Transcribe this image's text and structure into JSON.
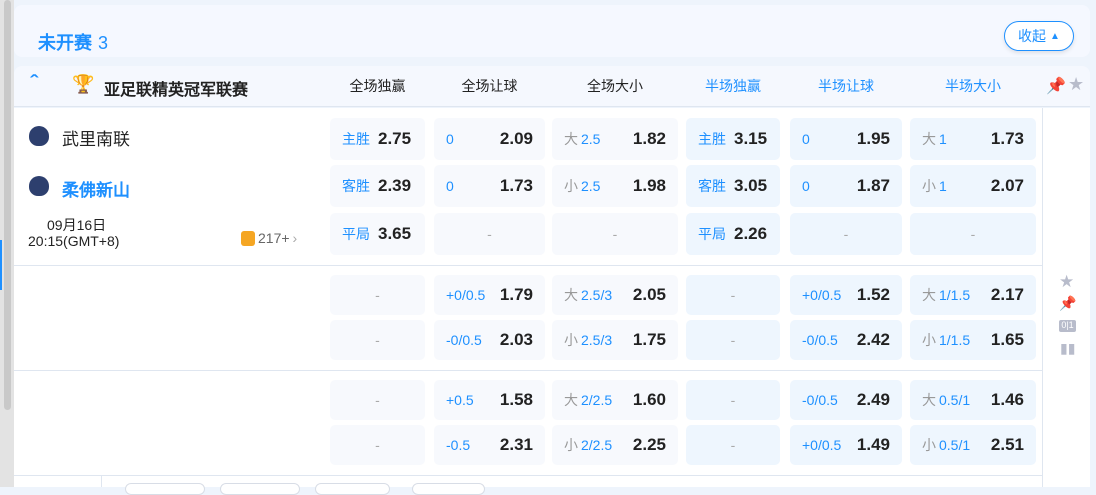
{
  "section": {
    "title": "未开赛",
    "count": "3",
    "collapse_label": "收起"
  },
  "league": {
    "name": "亚足联精英冠军联赛",
    "columns": [
      "全场独赢",
      "全场让球",
      "全场大小",
      "半场独赢",
      "半场让球",
      "半场大小"
    ]
  },
  "match": {
    "home": "武里南联",
    "away": "柔佛新山",
    "date": "09月16日",
    "time": "20:15(GMT+8)",
    "more_count": "217+"
  },
  "colors": {
    "accent": "#1e90ff",
    "halftime_bg": "#eef6fe",
    "fulltime_bg": "#f7f9fd"
  },
  "rows": [
    [
      {
        "l": "主胜",
        "o": "2.75"
      },
      {
        "l": "0",
        "o": "2.09"
      },
      {
        "p": "大",
        "l": "2.5",
        "o": "1.82"
      },
      {
        "l": "主胜",
        "o": "3.15"
      },
      {
        "l": "0",
        "o": "1.95"
      },
      {
        "p": "大",
        "l": "1",
        "o": "1.73"
      }
    ],
    [
      {
        "l": "客胜",
        "o": "2.39"
      },
      {
        "l": "0",
        "o": "1.73"
      },
      {
        "p": "小",
        "l": "2.5",
        "o": "1.98"
      },
      {
        "l": "客胜",
        "o": "3.05"
      },
      {
        "l": "0",
        "o": "1.87"
      },
      {
        "p": "小",
        "l": "1",
        "o": "2.07"
      }
    ],
    [
      {
        "l": "平局",
        "o": "3.65"
      },
      {
        "d": "-"
      },
      {
        "d": "-"
      },
      {
        "l": "平局",
        "o": "2.26"
      },
      {
        "d": "-"
      },
      {
        "d": "-"
      }
    ],
    [
      {
        "d": "-"
      },
      {
        "l": "+0/0.5",
        "o": "1.79"
      },
      {
        "p": "大",
        "l": "2.5/3",
        "o": "2.05"
      },
      {
        "d": "-"
      },
      {
        "l": "+0/0.5",
        "o": "1.52"
      },
      {
        "p": "大",
        "l": "1/1.5",
        "o": "2.17"
      }
    ],
    [
      {
        "d": "-"
      },
      {
        "l": "-0/0.5",
        "o": "2.03"
      },
      {
        "p": "小",
        "l": "2.5/3",
        "o": "1.75"
      },
      {
        "d": "-"
      },
      {
        "l": "-0/0.5",
        "o": "2.42"
      },
      {
        "p": "小",
        "l": "1/1.5",
        "o": "1.65"
      }
    ],
    [
      {
        "d": "-"
      },
      {
        "l": "+0.5",
        "o": "1.58"
      },
      {
        "p": "大",
        "l": "2/2.5",
        "o": "1.60"
      },
      {
        "d": "-"
      },
      {
        "l": "-0/0.5",
        "o": "2.49"
      },
      {
        "p": "大",
        "l": "0.5/1",
        "o": "1.46"
      }
    ],
    [
      {
        "d": "-"
      },
      {
        "l": "-0.5",
        "o": "2.31"
      },
      {
        "p": "小",
        "l": "2/2.5",
        "o": "2.25"
      },
      {
        "d": "-"
      },
      {
        "l": "+0/0.5",
        "o": "1.49"
      },
      {
        "p": "小",
        "l": "0.5/1",
        "o": "2.51"
      }
    ]
  ],
  "side_icons": [
    "star-icon",
    "pin-icon",
    "score-icon",
    "stats-icon"
  ]
}
